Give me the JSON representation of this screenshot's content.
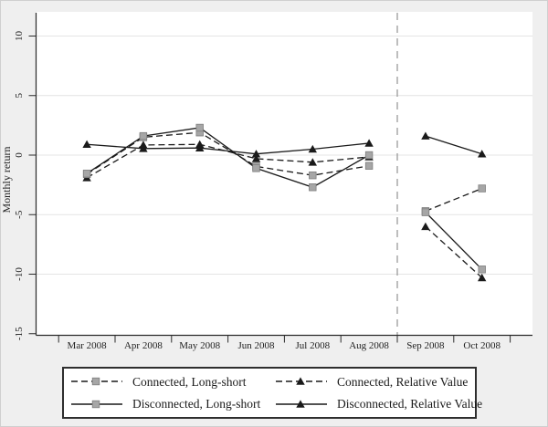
{
  "figure": {
    "background": "#efefef",
    "plot_background": "#ffffff",
    "axis_color": "#2b2b2b",
    "grid_color": "#e4e4e4",
    "divider_color": "#9a9a9a",
    "text_color": "#1f1f1f"
  },
  "chart_data": {
    "type": "line",
    "title": "",
    "xlabel": "",
    "ylabel": "Monthly return",
    "categories": [
      "Mar 2008",
      "Apr 2008",
      "May 2008",
      "Jun 2008",
      "Jul 2008",
      "Aug 2008",
      "Sep 2008",
      "Oct 2008"
    ],
    "y_ticks": [
      10,
      5,
      0,
      -5,
      -10,
      -15
    ],
    "ylim": [
      -15,
      12
    ],
    "grid": "horizontal",
    "legend_position": "bottom",
    "divider": {
      "after_category": "Aug 2008",
      "style": "dashed-vertical-line"
    },
    "segments": [
      [
        0,
        5
      ],
      [
        6,
        7
      ]
    ],
    "series": [
      {
        "name": "Connected, Long-short",
        "line": "dashed",
        "marker": "square",
        "marker_color": "#a6a6a6",
        "marker_edge": "#7e7e7e",
        "line_color": "#1a1a1a",
        "values": [
          -1.6,
          1.5,
          1.9,
          -0.95,
          -1.7,
          -0.9,
          -4.7,
          -2.8
        ]
      },
      {
        "name": "Connected, Relative Value",
        "line": "dashed",
        "marker": "triangle",
        "marker_color": "#1a1a1a",
        "marker_edge": "#1a1a1a",
        "line_color": "#1a1a1a",
        "values": [
          -1.9,
          0.85,
          0.9,
          -0.3,
          -0.6,
          -0.15,
          -6.0,
          -10.3
        ]
      },
      {
        "name": "Disconnected, Long-short",
        "line": "solid",
        "marker": "square",
        "marker_color": "#a6a6a6",
        "marker_edge": "#7e7e7e",
        "line_color": "#1a1a1a",
        "values": [
          -1.55,
          1.6,
          2.3,
          -1.1,
          -2.7,
          0.0,
          -4.8,
          -9.6
        ]
      },
      {
        "name": "Disconnected, Relative Value",
        "line": "solid",
        "marker": "triangle",
        "marker_color": "#1a1a1a",
        "marker_edge": "#1a1a1a",
        "line_color": "#1a1a1a",
        "values": [
          0.9,
          0.55,
          0.6,
          0.1,
          0.5,
          1.0,
          1.6,
          0.1
        ]
      }
    ]
  }
}
